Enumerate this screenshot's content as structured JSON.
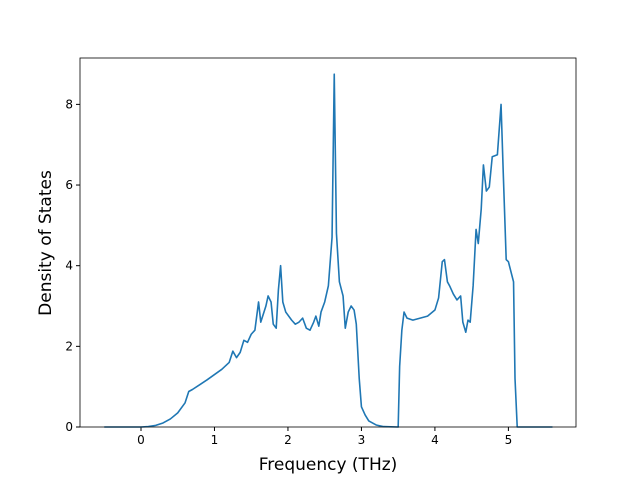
{
  "chart_data": {
    "type": "line",
    "x_label": "Frequency (THz)",
    "y_label": "Density of States",
    "xlim": [
      -0.83,
      5.92
    ],
    "ylim": [
      0,
      9.15
    ],
    "xticks": [
      0,
      1,
      2,
      3,
      4,
      5
    ],
    "yticks": [
      0,
      2,
      4,
      6,
      8
    ],
    "x": [
      -0.5,
      0,
      0.1,
      0.2,
      0.3,
      0.4,
      0.5,
      0.6,
      0.65,
      0.7,
      0.8,
      0.9,
      1.0,
      1.1,
      1.2,
      1.25,
      1.3,
      1.35,
      1.4,
      1.45,
      1.5,
      1.55,
      1.6,
      1.63,
      1.7,
      1.73,
      1.77,
      1.8,
      1.84,
      1.87,
      1.9,
      1.93,
      1.97,
      2.05,
      2.1,
      2.15,
      2.2,
      2.25,
      2.3,
      2.35,
      2.38,
      2.42,
      2.45,
      2.5,
      2.55,
      2.6,
      2.63,
      2.66,
      2.7,
      2.75,
      2.78,
      2.82,
      2.86,
      2.9,
      2.93,
      2.97,
      3.0,
      3.05,
      3.1,
      3.2,
      3.3,
      3.5,
      3.52,
      3.55,
      3.58,
      3.62,
      3.7,
      3.8,
      3.9,
      4.0,
      4.05,
      4.1,
      4.13,
      4.17,
      4.2,
      4.25,
      4.3,
      4.35,
      4.38,
      4.42,
      4.45,
      4.48,
      4.52,
      4.56,
      4.59,
      4.63,
      4.66,
      4.7,
      4.74,
      4.78,
      4.85,
      4.88,
      4.9,
      4.93,
      4.97,
      5.0,
      5.07,
      5.09,
      5.12,
      5.6
    ],
    "series": [
      {
        "color": "#1f77b4",
        "values": [
          0,
          0,
          0.01,
          0.04,
          0.1,
          0.2,
          0.35,
          0.6,
          0.88,
          0.93,
          1.05,
          1.17,
          1.3,
          1.43,
          1.6,
          1.88,
          1.72,
          1.85,
          2.15,
          2.1,
          2.3,
          2.4,
          3.1,
          2.6,
          3.0,
          3.25,
          3.1,
          2.55,
          2.45,
          3.4,
          4.0,
          3.1,
          2.85,
          2.65,
          2.55,
          2.6,
          2.7,
          2.45,
          2.4,
          2.6,
          2.75,
          2.5,
          2.85,
          3.1,
          3.5,
          4.7,
          8.75,
          4.8,
          3.6,
          3.25,
          2.45,
          2.85,
          3.0,
          2.9,
          2.55,
          1.2,
          0.5,
          0.3,
          0.15,
          0.05,
          0.01,
          0,
          1.5,
          2.4,
          2.85,
          2.7,
          2.65,
          2.7,
          2.75,
          2.9,
          3.2,
          4.1,
          4.15,
          3.6,
          3.5,
          3.3,
          3.15,
          3.25,
          2.6,
          2.35,
          2.65,
          2.6,
          3.5,
          4.9,
          4.55,
          5.4,
          6.5,
          5.85,
          5.95,
          6.7,
          6.75,
          7.5,
          8.0,
          6.3,
          4.15,
          4.1,
          3.6,
          1.2,
          0,
          0
        ]
      }
    ]
  }
}
